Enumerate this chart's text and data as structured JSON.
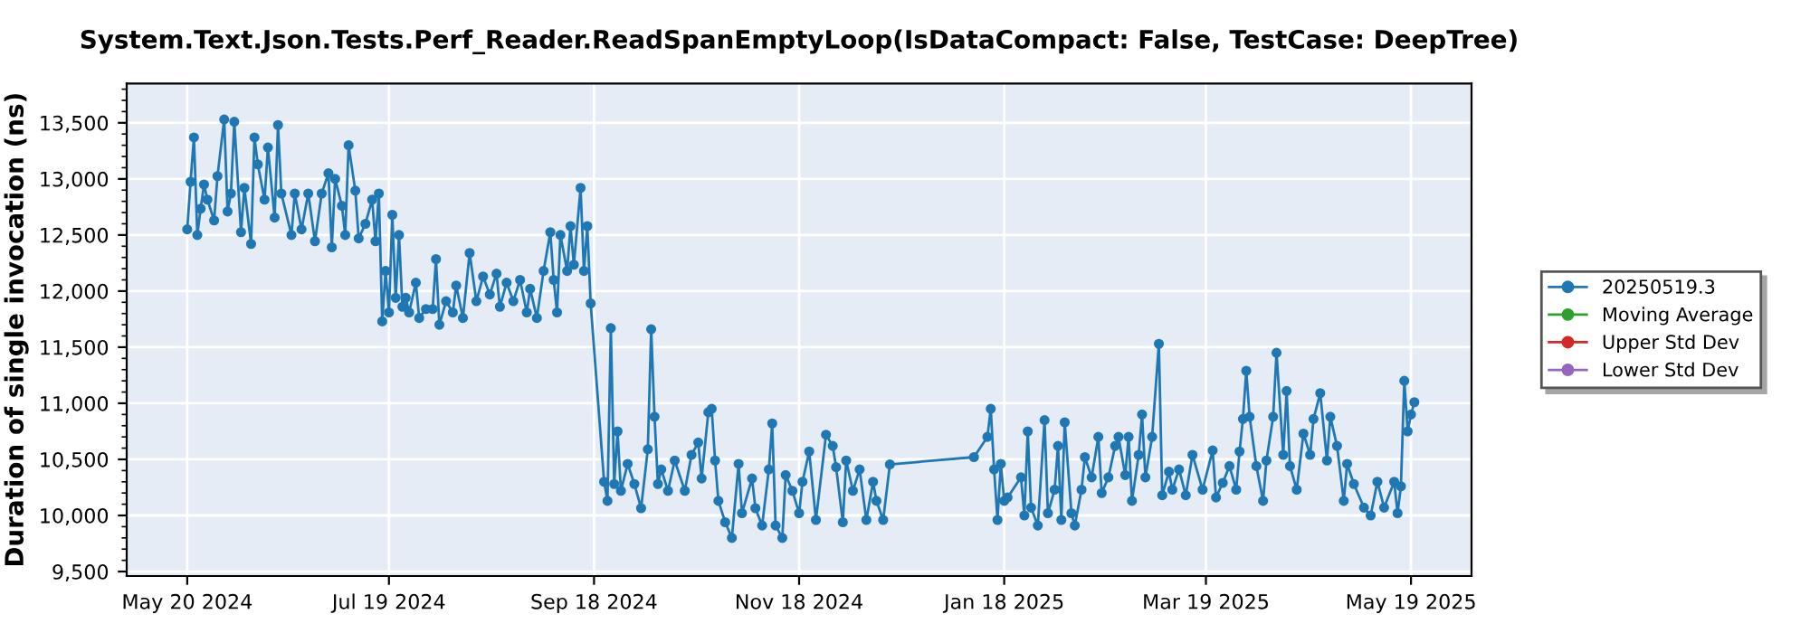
{
  "chart_data": {
    "type": "line",
    "title": "System.Text.Json.Tests.Perf_Reader.ReadSpanEmptyLoop(IsDataCompact: False, TestCase: DeepTree)",
    "ylabel": "Duration of single invocation (ns)",
    "xlim": [
      "2024-05-02",
      "2025-06-06"
    ],
    "ylim": [
      9460,
      13850
    ],
    "xticks": [
      {
        "value": "2024-05-20",
        "label": "May 20 2024"
      },
      {
        "value": "2024-07-19",
        "label": "Jul 19 2024"
      },
      {
        "value": "2024-09-18",
        "label": "Sep 18 2024"
      },
      {
        "value": "2024-11-18",
        "label": "Nov 18 2024"
      },
      {
        "value": "2025-01-18",
        "label": "Jan 18 2025"
      },
      {
        "value": "2025-03-19",
        "label": "Mar 19 2025"
      },
      {
        "value": "2025-05-19",
        "label": "May 19 2025"
      }
    ],
    "yticks": [
      {
        "value": 9500,
        "label": "9,500"
      },
      {
        "value": 10000,
        "label": "10,000"
      },
      {
        "value": 10500,
        "label": "10,500"
      },
      {
        "value": 11000,
        "label": "11,000"
      },
      {
        "value": 11500,
        "label": "11,500"
      },
      {
        "value": 12000,
        "label": "12,000"
      },
      {
        "value": 12500,
        "label": "12,500"
      },
      {
        "value": 13000,
        "label": "13,000"
      },
      {
        "value": 13500,
        "label": "13,500"
      }
    ],
    "grid": true,
    "legend": "right",
    "marker": "circle",
    "line_style": "solid",
    "series": [
      {
        "name": "20250519.3",
        "color": "#1f77b4",
        "x": [
          "2024-05-20",
          "2024-05-21",
          "2024-05-22",
          "2024-05-23",
          "2024-05-24",
          "2024-05-25",
          "2024-05-26",
          "2024-05-28",
          "2024-05-29",
          "2024-05-31",
          "2024-06-01",
          "2024-06-02",
          "2024-06-03",
          "2024-06-05",
          "2024-06-06",
          "2024-06-08",
          "2024-06-09",
          "2024-06-10",
          "2024-06-12",
          "2024-06-13",
          "2024-06-15",
          "2024-06-16",
          "2024-06-17",
          "2024-06-20",
          "2024-06-21",
          "2024-06-23",
          "2024-06-25",
          "2024-06-27",
          "2024-06-29",
          "2024-07-01",
          "2024-07-02",
          "2024-07-03",
          "2024-07-05",
          "2024-07-06",
          "2024-07-07",
          "2024-07-09",
          "2024-07-10",
          "2024-07-12",
          "2024-07-14",
          "2024-07-15",
          "2024-07-16",
          "2024-07-17",
          "2024-07-18",
          "2024-07-19",
          "2024-07-20",
          "2024-07-21",
          "2024-07-22",
          "2024-07-23",
          "2024-07-24",
          "2024-07-25",
          "2024-07-27",
          "2024-07-28",
          "2024-07-30",
          "2024-08-01",
          "2024-08-02",
          "2024-08-03",
          "2024-08-05",
          "2024-08-07",
          "2024-08-08",
          "2024-08-10",
          "2024-08-12",
          "2024-08-14",
          "2024-08-16",
          "2024-08-18",
          "2024-08-20",
          "2024-08-21",
          "2024-08-23",
          "2024-08-25",
          "2024-08-27",
          "2024-08-29",
          "2024-08-30",
          "2024-09-01",
          "2024-09-03",
          "2024-09-05",
          "2024-09-06",
          "2024-09-07",
          "2024-09-08",
          "2024-09-10",
          "2024-09-11",
          "2024-09-12",
          "2024-09-14",
          "2024-09-15",
          "2024-09-16",
          "2024-09-17",
          "2024-09-21",
          "2024-09-22",
          "2024-09-23",
          "2024-09-24",
          "2024-09-25",
          "2024-09-26",
          "2024-09-28",
          "2024-09-30",
          "2024-10-02",
          "2024-10-04",
          "2024-10-05",
          "2024-10-06",
          "2024-10-07",
          "2024-10-08",
          "2024-10-10",
          "2024-10-12",
          "2024-10-15",
          "2024-10-17",
          "2024-10-19",
          "2024-10-20",
          "2024-10-22",
          "2024-10-23",
          "2024-10-24",
          "2024-10-25",
          "2024-10-27",
          "2024-10-29",
          "2024-10-31",
          "2024-11-01",
          "2024-11-04",
          "2024-11-05",
          "2024-11-07",
          "2024-11-09",
          "2024-11-10",
          "2024-11-11",
          "2024-11-13",
          "2024-11-14",
          "2024-11-16",
          "2024-11-18",
          "2024-11-19",
          "2024-11-21",
          "2024-11-23",
          "2024-11-26",
          "2024-11-28",
          "2024-11-29",
          "2024-12-01",
          "2024-12-02",
          "2024-12-04",
          "2024-12-06",
          "2024-12-08",
          "2024-12-10",
          "2024-12-11",
          "2024-12-13",
          "2024-12-15",
          "2025-01-09",
          "2025-01-13",
          "2025-01-14",
          "2025-01-15",
          "2025-01-16",
          "2025-01-17",
          "2025-01-18",
          "2025-01-19",
          "2025-01-23",
          "2025-01-24",
          "2025-01-25",
          "2025-01-26",
          "2025-01-28",
          "2025-01-30",
          "2025-01-31",
          "2025-02-02",
          "2025-02-03",
          "2025-02-04",
          "2025-02-05",
          "2025-02-07",
          "2025-02-08",
          "2025-02-10",
          "2025-02-11",
          "2025-02-13",
          "2025-02-15",
          "2025-02-16",
          "2025-02-18",
          "2025-02-20",
          "2025-02-21",
          "2025-02-23",
          "2025-02-24",
          "2025-02-25",
          "2025-02-27",
          "2025-02-28",
          "2025-03-01",
          "2025-03-03",
          "2025-03-05",
          "2025-03-06",
          "2025-03-08",
          "2025-03-09",
          "2025-03-11",
          "2025-03-13",
          "2025-03-15",
          "2025-03-18",
          "2025-03-21",
          "2025-03-22",
          "2025-03-24",
          "2025-03-26",
          "2025-03-28",
          "2025-03-29",
          "2025-03-30",
          "2025-03-31",
          "2025-04-01",
          "2025-04-03",
          "2025-04-05",
          "2025-04-06",
          "2025-04-08",
          "2025-04-09",
          "2025-04-11",
          "2025-04-12",
          "2025-04-13",
          "2025-04-15",
          "2025-04-17",
          "2025-04-19",
          "2025-04-20",
          "2025-04-22",
          "2025-04-24",
          "2025-04-25",
          "2025-04-27",
          "2025-04-29",
          "2025-04-30",
          "2025-05-02",
          "2025-05-05",
          "2025-05-07",
          "2025-05-09",
          "2025-05-11",
          "2025-05-14",
          "2025-05-15",
          "2025-05-16",
          "2025-05-17",
          "2025-05-18",
          "2025-05-19",
          "2025-05-20"
        ],
        "values": [
          12550,
          12975,
          13370,
          12500,
          12735,
          12950,
          12815,
          12630,
          13025,
          13530,
          12710,
          12870,
          13510,
          12525,
          12920,
          12420,
          13370,
          13130,
          12815,
          13280,
          12655,
          13480,
          12870,
          12500,
          12870,
          12550,
          12870,
          12445,
          12870,
          13050,
          12390,
          13000,
          12760,
          12500,
          13300,
          12895,
          12470,
          12600,
          12815,
          12445,
          12870,
          11730,
          12180,
          11810,
          12680,
          11940,
          12500,
          11860,
          11940,
          11810,
          12075,
          11760,
          11840,
          11840,
          12285,
          11700,
          11910,
          11810,
          12050,
          11760,
          12340,
          11910,
          12130,
          11970,
          12155,
          11860,
          12075,
          11910,
          12100,
          11810,
          12020,
          11760,
          12180,
          12525,
          12100,
          11810,
          12500,
          12180,
          12580,
          12235,
          12920,
          12180,
          12580,
          11890,
          10300,
          10130,
          11670,
          10280,
          10750,
          10220,
          10460,
          10280,
          10065,
          10590,
          11660,
          10880,
          10280,
          10410,
          10220,
          10490,
          10220,
          10540,
          10650,
          10330,
          10920,
          10950,
          10490,
          10130,
          9940,
          9800,
          10460,
          10020,
          10330,
          10065,
          9910,
          10410,
          10820,
          9910,
          9800,
          10360,
          10220,
          10020,
          10300,
          10570,
          9960,
          10720,
          10620,
          10430,
          9940,
          10490,
          10220,
          10410,
          9960,
          10300,
          10130,
          9960,
          10455,
          10520,
          10700,
          10950,
          10410,
          9960,
          10460,
          10130,
          10160,
          10340,
          10000,
          10750,
          10070,
          9910,
          10850,
          10020,
          10230,
          10620,
          9960,
          10830,
          10020,
          9910,
          10230,
          10520,
          10340,
          10700,
          10200,
          10340,
          10620,
          10700,
          10360,
          10700,
          10130,
          10540,
          10900,
          10340,
          10700,
          11530,
          10180,
          10390,
          10230,
          10410,
          10180,
          10540,
          10230,
          10580,
          10160,
          10290,
          10440,
          10230,
          10570,
          10860,
          11290,
          10880,
          10440,
          10130,
          10490,
          10880,
          11450,
          10540,
          11110,
          10440,
          10230,
          10730,
          10540,
          10860,
          11090,
          10490,
          10880,
          10620,
          10130,
          10460,
          10280,
          10070,
          10000,
          10300,
          10070,
          10300,
          10020,
          10260,
          11200,
          10750,
          10900,
          11010
        ]
      },
      {
        "name": "Moving Average",
        "color": "#2ca02c"
      },
      {
        "name": "Upper Std Dev",
        "color": "#d62728"
      },
      {
        "name": "Lower Std Dev",
        "color": "#9467bd"
      }
    ]
  }
}
